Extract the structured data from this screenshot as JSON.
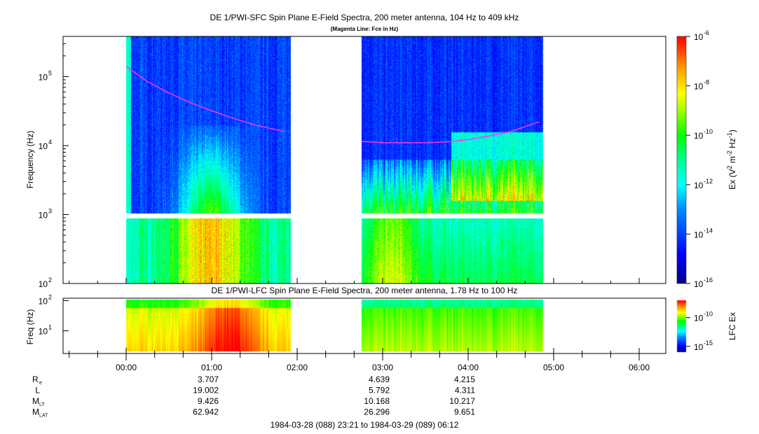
{
  "chart_data": {
    "type": "heatmap",
    "title": "DE 1/PWI-SFC  Spin Plane E-Field Spectra, 200 meter antenna, 104 Hz to 409 kHz",
    "subtitle": "(Magenta Line: Fce in Hz)",
    "ylabel": "Frequency (Hz)",
    "ylim_hz": [
      100,
      409000
    ],
    "y_ticks": [
      {
        "v": 2,
        "label": "10",
        "exp": "2"
      },
      {
        "v": 3,
        "label": "10",
        "exp": "3"
      },
      {
        "v": 4,
        "label": "10",
        "exp": "4"
      },
      {
        "v": 5,
        "label": "10",
        "exp": "5"
      }
    ],
    "colorbar": {
      "label_main": "Ex (V",
      "label_full": "Ex (V^2 m^-2 Hz^-1)",
      "range_log10": [
        -16,
        -6
      ],
      "ticks": [
        {
          "v": -6,
          "exp": "-6"
        },
        {
          "v": -8,
          "exp": "-8"
        },
        {
          "v": -10,
          "exp": "-10"
        },
        {
          "v": -12,
          "exp": "-12"
        },
        {
          "v": -14,
          "exp": "-14"
        },
        {
          "v": -16,
          "exp": "-16"
        }
      ]
    },
    "data_segments_hours": [
      [
        0.0,
        1.93
      ],
      [
        2.75,
        4.88
      ]
    ],
    "fce_line": {
      "color": "#ff33ff",
      "segments": [
        {
          "t": [
            0.0,
            0.25,
            0.5,
            0.75,
            1.0,
            1.25,
            1.5,
            1.85
          ],
          "f_hz": [
            140000,
            85000,
            58000,
            42000,
            32000,
            25000,
            20000,
            16000
          ]
        },
        {
          "t": [
            2.75,
            3.0,
            3.25,
            3.5,
            3.75,
            4.0,
            4.25,
            4.5,
            4.83
          ],
          "f_hz": [
            11500,
            11000,
            11000,
            11000,
            11300,
            12200,
            13800,
            16000,
            22000
          ]
        }
      ]
    },
    "lfc": {
      "title": "DE 1/PWI-LFC  Spin Plane E-Field Spectra, 200 meter antenna, 1.78 Hz to 100 Hz",
      "ylabel": "Freq (Hz)",
      "ylim_hz": [
        1.78,
        120
      ],
      "y_ticks": [
        {
          "v": 1,
          "label": "10",
          "exp": "1"
        },
        {
          "v": 2,
          "label": "10",
          "exp": "2"
        }
      ],
      "colorbar_label": "LFC Ex",
      "colorbar_range_log10": [
        -16,
        -7
      ],
      "colorbar_ticks": [
        {
          "v": -10,
          "exp": "-10"
        },
        {
          "v": -15,
          "exp": "-15"
        }
      ]
    },
    "x_axis": {
      "range_hours": [
        -0.65,
        6.2
      ],
      "ticks": [
        "00:00",
        "01:00",
        "02:00",
        "03:00",
        "04:00",
        "05:00",
        "06:00"
      ],
      "tick_hours": [
        0,
        1,
        2,
        3,
        4,
        5,
        6
      ]
    },
    "ephemeris": {
      "rows": [
        {
          "label": "R",
          "sub": "e",
          "values": [
            "3.707",
            "4.639",
            "4.215"
          ]
        },
        {
          "label": "L",
          "sub": "",
          "values": [
            "19.002",
            "5.792",
            "4.311"
          ]
        },
        {
          "label": "M",
          "sub": "LT",
          "values": [
            "9.426",
            "10.168",
            "10.217"
          ]
        },
        {
          "label": "M",
          "sub": "LAT",
          "values": [
            "62.942",
            "26.296",
            "9.651"
          ]
        }
      ],
      "at_hours": [
        1,
        3,
        4
      ]
    },
    "time_range": "1984-03-28 (088) 23:21 to 1984-03-29 (089) 06:12"
  }
}
